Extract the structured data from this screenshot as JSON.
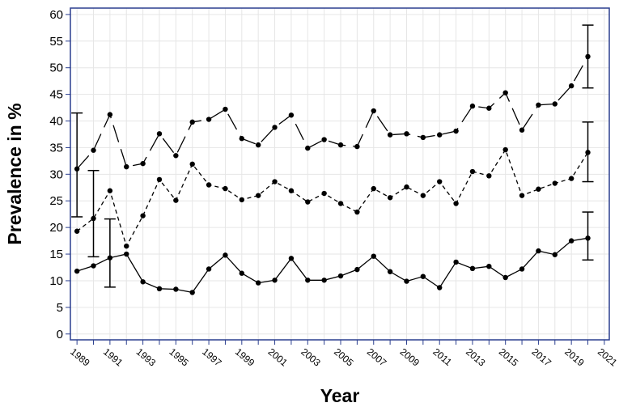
{
  "chart_data": {
    "type": "line",
    "title": "",
    "xlabel": "Year",
    "ylabel": "Prevalence in %",
    "xlim": [
      1988.6,
      2021.3
    ],
    "ylim": [
      -1.1,
      61.2
    ],
    "x_ticks": [
      "1989",
      "1991",
      "1993",
      "1995",
      "1997",
      "1999",
      "2001",
      "2003",
      "2005",
      "2007",
      "2009",
      "2011",
      "2013",
      "2015",
      "2017",
      "2019",
      "2021"
    ],
    "y_ticks": [
      "0",
      "5",
      "10",
      "15",
      "20",
      "25",
      "30",
      "35",
      "40",
      "45",
      "50",
      "55",
      "60"
    ],
    "grid": true,
    "colors": {
      "frame": "#2b3f8f",
      "grid": "#e6e6e6",
      "line": "#000000"
    },
    "x": [
      1989,
      1990,
      1991,
      1992,
      1993,
      1994,
      1995,
      1996,
      1997,
      1998,
      1999,
      2000,
      2001,
      2002,
      2003,
      2004,
      2005,
      2006,
      2007,
      2008,
      2009,
      2010,
      2011,
      2012,
      2013,
      2014,
      2015,
      2016,
      2017,
      2018,
      2019,
      2020
    ],
    "series": [
      {
        "line_style": "long-dash",
        "values": [
          31.0,
          34.5,
          41.2,
          31.4,
          32.0,
          37.6,
          33.5,
          39.8,
          40.3,
          42.2,
          36.7,
          35.5,
          38.8,
          41.1,
          34.9,
          36.5,
          35.5,
          35.2,
          41.9,
          37.4,
          37.6,
          36.9,
          37.4,
          38.1,
          42.8,
          42.4,
          45.3,
          38.3,
          43.0,
          43.2,
          46.6,
          52.1
        ],
        "error_bars": [
          {
            "x": 1989,
            "low": 22.0,
            "high": 41.5
          },
          {
            "x": 2020,
            "low": 46.2,
            "high": 58.0
          }
        ]
      },
      {
        "line_style": "short-dash",
        "values": [
          19.3,
          21.7,
          26.9,
          16.5,
          22.2,
          29.0,
          25.1,
          31.9,
          28.0,
          27.3,
          25.2,
          26.0,
          28.6,
          26.9,
          24.8,
          26.4,
          24.5,
          22.9,
          27.3,
          25.6,
          27.6,
          26.0,
          28.6,
          24.5,
          30.5,
          29.7,
          34.6,
          26.0,
          27.2,
          28.3,
          29.2,
          34.1
        ],
        "error_bars": [
          {
            "x": 1990,
            "low": 14.5,
            "high": 30.7
          },
          {
            "x": 2020,
            "low": 28.6,
            "high": 39.8
          }
        ]
      },
      {
        "line_style": "solid",
        "values": [
          11.8,
          12.8,
          14.3,
          15.0,
          9.8,
          8.5,
          8.4,
          7.8,
          12.2,
          14.8,
          11.4,
          9.6,
          10.1,
          14.2,
          10.1,
          10.1,
          10.9,
          12.1,
          14.6,
          11.7,
          9.9,
          10.8,
          8.7,
          13.5,
          12.3,
          12.7,
          10.6,
          12.2,
          15.6,
          14.9,
          17.5,
          18.0
        ],
        "error_bars": [
          {
            "x": 1991,
            "low": 8.8,
            "high": 21.6
          },
          {
            "x": 2020,
            "low": 13.9,
            "high": 22.9
          }
        ]
      }
    ]
  }
}
